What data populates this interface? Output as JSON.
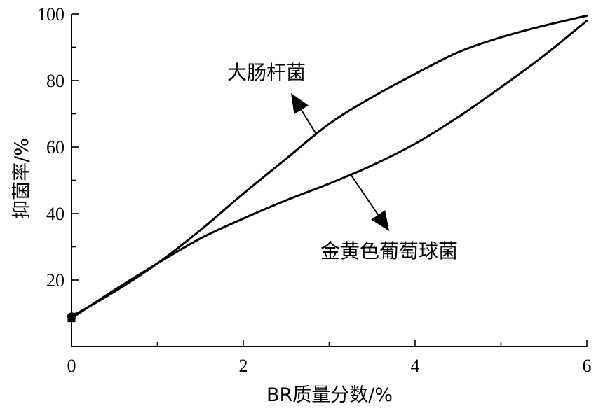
{
  "chart_data": {
    "type": "line",
    "xlabel": "BR质量分数/%",
    "ylabel": "抑菌率/%",
    "xlim": [
      0,
      6
    ],
    "ylim": [
      0,
      100
    ],
    "xticks": [
      0,
      2,
      4,
      6
    ],
    "yticks": [
      20,
      40,
      60,
      80,
      100
    ],
    "x_minor_ticks": [
      1,
      3,
      5
    ],
    "grid": false,
    "series": [
      {
        "name": "大肠杆菌",
        "x": [
          0,
          0.5,
          1,
          1.5,
          2,
          2.5,
          3,
          3.5,
          4,
          4.5,
          5,
          5.5,
          6
        ],
        "values": [
          9,
          16.5,
          25,
          35,
          46,
          56.5,
          67,
          75,
          82,
          88.5,
          93,
          96.5,
          99.5
        ],
        "marker": "circle"
      },
      {
        "name": "金黄色葡萄球菌",
        "x": [
          0,
          0.5,
          1,
          1.5,
          2,
          2.5,
          3,
          3.5,
          4,
          4.5,
          5,
          5.5,
          6
        ],
        "values": [
          8.5,
          17,
          25,
          32.5,
          38.5,
          44,
          49,
          54.5,
          61,
          69,
          78,
          87.5,
          98
        ],
        "marker": "square"
      }
    ],
    "annotations": [
      {
        "text": "大肠杆菌",
        "series": 0,
        "at_x": 2.85,
        "arrow": "toward-label"
      },
      {
        "text": "金黄色葡萄球菌",
        "series": 1,
        "at_x": 3.25,
        "arrow": "toward-label"
      }
    ]
  }
}
